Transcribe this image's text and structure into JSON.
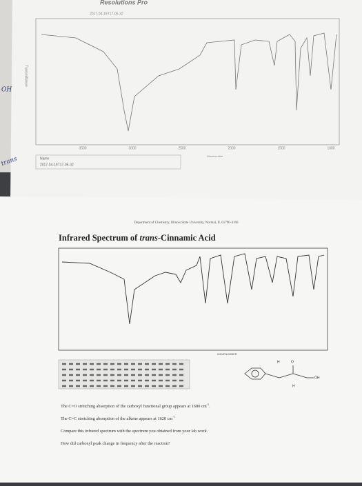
{
  "top_sheet": {
    "header": "Resolutions Pro",
    "chart_title": "2017-04-19T17-05-32",
    "y_label": "Transmittance",
    "x_label": "Wavenumber",
    "x_ticks": [
      "3500",
      "3000",
      "2500",
      "2000",
      "1500",
      "1000"
    ],
    "name_label": "Name",
    "name_value": "2017-04-19T17-05-32"
  },
  "handwriting": {
    "left_1": "OH",
    "left_2": "trans"
  },
  "bottom_sheet": {
    "department": "Department of Chemistry, Illinois State University, Normal, IL 61790-4160",
    "title": [
      "Infrared Spectrum of ",
      "trans",
      "-Cinnamic Acid"
    ],
    "x_label": "WAVENUMBER",
    "structure": {
      "h_top": "H",
      "o": "O",
      "oh": "OH",
      "h_bottom": "H"
    },
    "lines": [
      {
        "text": "The C=O stretching absorption of the carboxyl functional group appears at 1680 cm",
        "sup": "-1",
        "end": "."
      },
      {
        "text": "The C=C stretching absorption of the alkene appears at 1620 cm",
        "sup": "-1",
        "end": ""
      },
      {
        "text": "Compare this infrared spectrum with the spectrum you obtained from your lab work.",
        "sup": "",
        "end": ""
      },
      {
        "text": "How did carbonyl peak change in frequency after the reaction?",
        "sup": "",
        "end": ""
      }
    ]
  }
}
